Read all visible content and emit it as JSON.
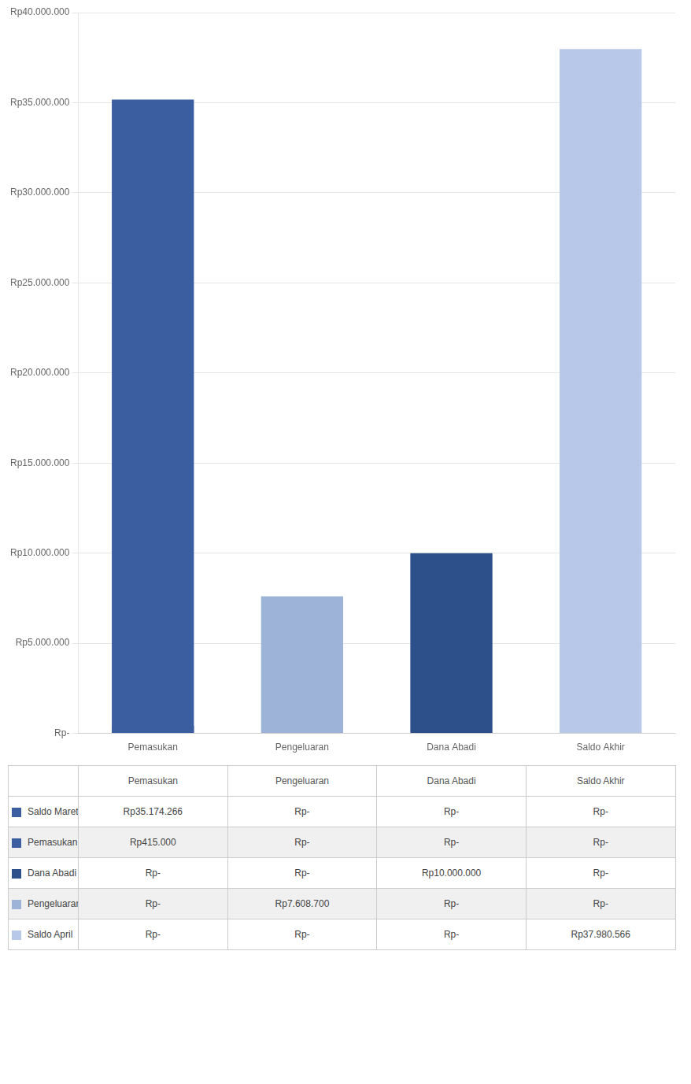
{
  "chart_data": {
    "type": "bar",
    "categories": [
      "Pemasukan",
      "Pengeluaran",
      "Dana Abadi",
      "Saldo Akhir"
    ],
    "series": [
      {
        "name": "Saldo Maret",
        "color": "#3a5ea0",
        "values": [
          35174266,
          0,
          0,
          0
        ],
        "value_labels": [
          "Rp35.174.266",
          "Rp-",
          "Rp-",
          "Rp-"
        ]
      },
      {
        "name": "Pemasukan",
        "color": "#3a5ea0",
        "values": [
          415000,
          0,
          0,
          0
        ],
        "value_labels": [
          "Rp415.000",
          "Rp-",
          "Rp-",
          "Rp-"
        ]
      },
      {
        "name": "Dana Abadi",
        "color": "#2d4f8a",
        "values": [
          0,
          0,
          10000000,
          0
        ],
        "value_labels": [
          "Rp-",
          "Rp-",
          "Rp10.000.000",
          "Rp-"
        ]
      },
      {
        "name": "Pengeluaran",
        "color": "#9db3d8",
        "values": [
          0,
          7608700,
          0,
          0
        ],
        "value_labels": [
          "Rp-",
          "Rp7.608.700",
          "Rp-",
          "Rp-"
        ]
      },
      {
        "name": "Saldo April",
        "color": "#b8c8e8",
        "values": [
          0,
          0,
          0,
          37980566
        ],
        "value_labels": [
          "Rp-",
          "Rp-",
          "Rp-",
          "Rp37.980.566"
        ]
      }
    ],
    "ylim": [
      0,
      40000000
    ],
    "yticks": [
      {
        "value": 0,
        "label": "Rp-"
      },
      {
        "value": 5000000,
        "label": "Rp5.000.000"
      },
      {
        "value": 10000000,
        "label": "Rp10.000.000"
      },
      {
        "value": 15000000,
        "label": "Rp15.000.000"
      },
      {
        "value": 20000000,
        "label": "Rp20.000.000"
      },
      {
        "value": 25000000,
        "label": "Rp25.000.000"
      },
      {
        "value": 30000000,
        "label": "Rp30.000.000"
      },
      {
        "value": 35000000,
        "label": "Rp35.000.000"
      },
      {
        "value": 40000000,
        "label": "Rp40.000.000"
      }
    ],
    "grid": true
  }
}
